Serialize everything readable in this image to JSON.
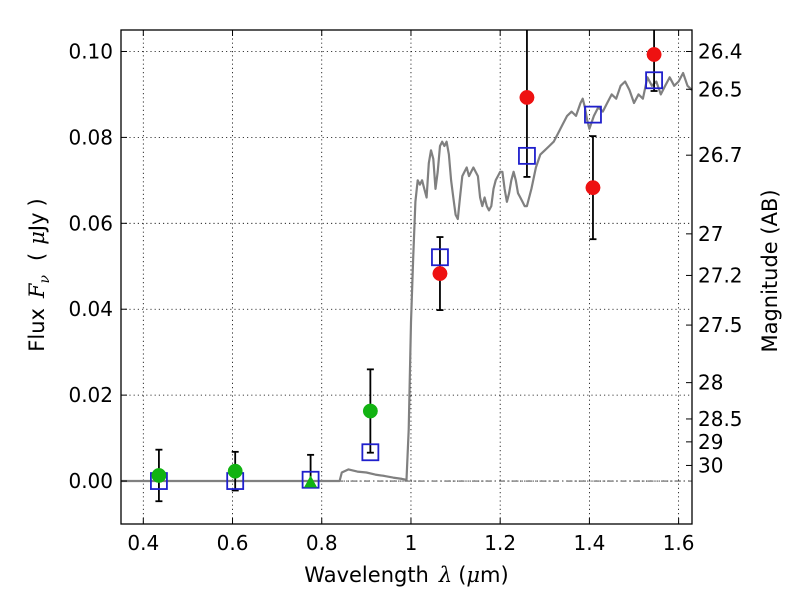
{
  "chart_data": {
    "type": "scatter",
    "title": "",
    "xlabel": "Wavelength",
    "xlabel_symbol": "λ",
    "xlabel_unit_open": "(",
    "xlabel_unit_mu": "μ",
    "xlabel_unit_rest": "m)",
    "ylabel": "Flux",
    "ylabel_symbol": "F",
    "ylabel_sub": "ν",
    "ylabel_unit_open": "(",
    "ylabel_unit_mu": "μ",
    "ylabel_unit_rest": "Jy",
    "ylabel_unit_close": ")",
    "y2label": "Magnitude (AB)",
    "xlim": [
      0.35,
      1.63
    ],
    "ylim": [
      -0.01,
      0.105
    ],
    "x_ticks": [
      0.4,
      0.6,
      0.8,
      1.0,
      1.2,
      1.4,
      1.6
    ],
    "x_tick_labels": [
      "0.4",
      "0.6",
      "0.8",
      "1",
      "1.2",
      "1.4",
      "1.6"
    ],
    "y_ticks": [
      0.0,
      0.02,
      0.04,
      0.06,
      0.08,
      0.1
    ],
    "y_tick_labels": [
      "0.00",
      "0.02",
      "0.04",
      "0.06",
      "0.08",
      "0.10"
    ],
    "mag_ticks": [
      "26.4",
      "26.5",
      "26.7",
      "27",
      "27.2",
      "27.5",
      "28",
      "28.5",
      "29",
      "30"
    ],
    "grid": true,
    "zero_line": true,
    "colors": {
      "model": "#808080",
      "green": "#12b312",
      "red": "#ee1111",
      "blue": "#1f1fcc",
      "error": "#000000"
    },
    "model_spectrum": {
      "name": "",
      "x": [
        0.35,
        0.84,
        0.845,
        0.86,
        0.88,
        0.9,
        0.92,
        0.94,
        0.96,
        0.98,
        0.99,
        0.995,
        1.0,
        1.005,
        1.01,
        1.015,
        1.02,
        1.025,
        1.03,
        1.035,
        1.04,
        1.045,
        1.05,
        1.055,
        1.06,
        1.065,
        1.07,
        1.075,
        1.08,
        1.085,
        1.09,
        1.095,
        1.1,
        1.105,
        1.11,
        1.115,
        1.12,
        1.125,
        1.13,
        1.135,
        1.14,
        1.145,
        1.15,
        1.155,
        1.16,
        1.165,
        1.17,
        1.175,
        1.18,
        1.185,
        1.19,
        1.195,
        1.2,
        1.205,
        1.21,
        1.215,
        1.22,
        1.225,
        1.23,
        1.235,
        1.24,
        1.245,
        1.25,
        1.255,
        1.26,
        1.27,
        1.28,
        1.29,
        1.3,
        1.31,
        1.32,
        1.33,
        1.34,
        1.35,
        1.36,
        1.37,
        1.38,
        1.385,
        1.39,
        1.395,
        1.4,
        1.41,
        1.42,
        1.43,
        1.44,
        1.45,
        1.46,
        1.47,
        1.48,
        1.49,
        1.5,
        1.51,
        1.52,
        1.53,
        1.54,
        1.55,
        1.56,
        1.57,
        1.58,
        1.59,
        1.6,
        1.61,
        1.62,
        1.63
      ],
      "y": [
        0.0,
        0.0,
        0.002,
        0.0027,
        0.0022,
        0.002,
        0.0015,
        0.0012,
        0.0008,
        0.0005,
        0.0003,
        0.012,
        0.037,
        0.052,
        0.065,
        0.07,
        0.069,
        0.07,
        0.068,
        0.066,
        0.074,
        0.077,
        0.075,
        0.068,
        0.072,
        0.078,
        0.079,
        0.078,
        0.079,
        0.076,
        0.07,
        0.066,
        0.062,
        0.061,
        0.066,
        0.071,
        0.072,
        0.073,
        0.071,
        0.072,
        0.073,
        0.072,
        0.071,
        0.066,
        0.064,
        0.066,
        0.064,
        0.063,
        0.064,
        0.068,
        0.07,
        0.071,
        0.072,
        0.072,
        0.068,
        0.065,
        0.067,
        0.07,
        0.072,
        0.07,
        0.067,
        0.066,
        0.065,
        0.064,
        0.064,
        0.068,
        0.073,
        0.076,
        0.077,
        0.078,
        0.079,
        0.081,
        0.083,
        0.085,
        0.086,
        0.085,
        0.088,
        0.089,
        0.087,
        0.084,
        0.082,
        0.085,
        0.087,
        0.086,
        0.088,
        0.09,
        0.089,
        0.092,
        0.093,
        0.091,
        0.088,
        0.09,
        0.089,
        0.094,
        0.092,
        0.093,
        0.09,
        0.092,
        0.094,
        0.092,
        0.093,
        0.095,
        0.092,
        0.091
      ]
    },
    "series": [
      {
        "marker": "circle",
        "color": "green",
        "x": [
          0.435,
          0.606,
          0.909
        ],
        "y": [
          0.0013,
          0.0023,
          0.0163
        ],
        "yerr": [
          0.006,
          0.0045,
          0.0097
        ]
      },
      {
        "marker": "triangle",
        "color": "green",
        "x": [
          0.775
        ],
        "y": [
          -0.0003
        ],
        "yerr_lo": [
          0.0003
        ],
        "yerr_hi": [
          0.0064
        ]
      },
      {
        "marker": "circle",
        "color": "red",
        "x": [
          1.065,
          1.26,
          1.408,
          1.545
        ],
        "y": [
          0.0483,
          0.0893,
          0.0683,
          0.0993
        ],
        "yerr": [
          0.0085,
          0.0185,
          0.012,
          0.0085
        ]
      },
      {
        "marker": "square",
        "color": "blue",
        "x": [
          0.435,
          0.606,
          0.775,
          0.909,
          1.065,
          1.26,
          1.408,
          1.545
        ],
        "y": [
          0.0,
          0.0,
          0.0003,
          0.0067,
          0.0521,
          0.0757,
          0.0853,
          0.0933
        ]
      }
    ]
  }
}
